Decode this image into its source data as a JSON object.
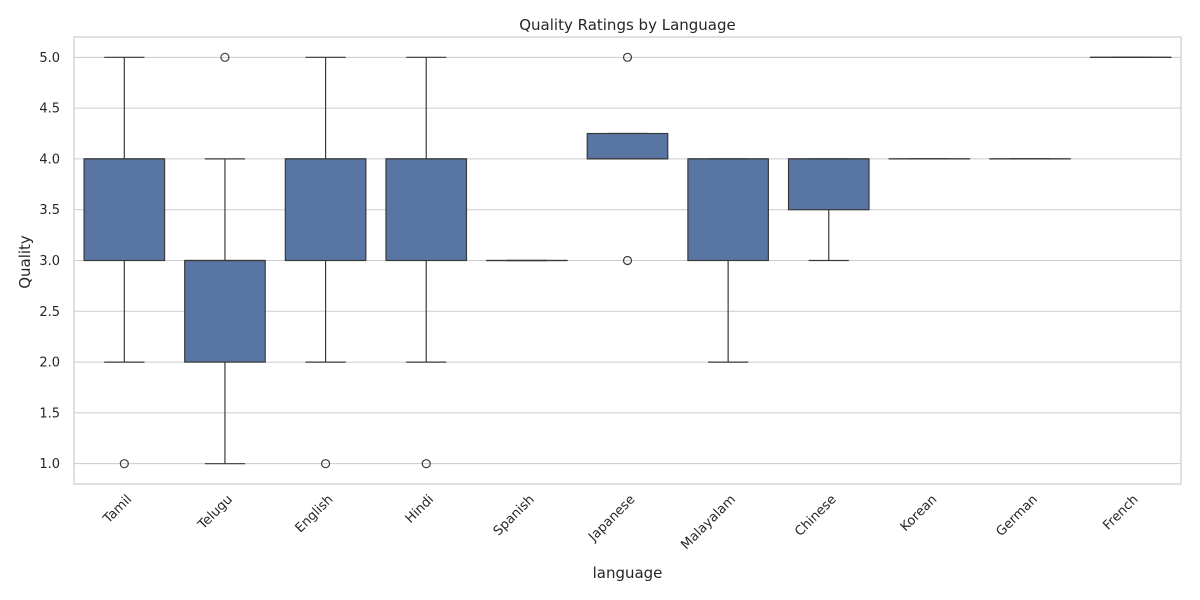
{
  "chart_data": {
    "type": "box",
    "title": "Quality Ratings by Language",
    "xlabel": "language",
    "ylabel": "Quality",
    "ylim": [
      0.8,
      5.2
    ],
    "yticks": [
      1.0,
      1.5,
      2.0,
      2.5,
      3.0,
      3.5,
      4.0,
      4.5,
      5.0
    ],
    "ytick_labels": [
      "1.0",
      "1.5",
      "2.0",
      "2.5",
      "3.0",
      "3.5",
      "4.0",
      "4.5",
      "5.0"
    ],
    "grid": true,
    "box_color": "#5975a4",
    "line_color": "#3a3a3a",
    "categories": [
      "Tamil",
      "Telugu",
      "English",
      "Hindi",
      "Spanish",
      "Japanese",
      "Malayalam",
      "Chinese",
      "Korean",
      "German",
      "French"
    ],
    "boxes": [
      {
        "category": "Tamil",
        "whisker_low": 2.0,
        "q1": 3.0,
        "median": 4.0,
        "q3": 4.0,
        "whisker_high": 5.0,
        "outliers": [
          1.0
        ]
      },
      {
        "category": "Telugu",
        "whisker_low": 1.0,
        "q1": 2.0,
        "median": 3.0,
        "q3": 3.0,
        "whisker_high": 4.0,
        "outliers": [
          5.0
        ]
      },
      {
        "category": "English",
        "whisker_low": 2.0,
        "q1": 3.0,
        "median": 4.0,
        "q3": 4.0,
        "whisker_high": 5.0,
        "outliers": [
          1.0
        ]
      },
      {
        "category": "Hindi",
        "whisker_low": 2.0,
        "q1": 3.0,
        "median": 4.0,
        "q3": 4.0,
        "whisker_high": 5.0,
        "outliers": [
          1.0
        ]
      },
      {
        "category": "Spanish",
        "whisker_low": 3.0,
        "q1": 3.0,
        "median": 3.0,
        "q3": 3.0,
        "whisker_high": 3.0,
        "outliers": []
      },
      {
        "category": "Japanese",
        "whisker_low": 4.0,
        "q1": 4.0,
        "median": 4.0,
        "q3": 4.25,
        "whisker_high": 4.25,
        "outliers": [
          3.0,
          5.0
        ]
      },
      {
        "category": "Malayalam",
        "whisker_low": 2.0,
        "q1": 3.0,
        "median": 4.0,
        "q3": 4.0,
        "whisker_high": 4.0,
        "outliers": []
      },
      {
        "category": "Chinese",
        "whisker_low": 3.0,
        "q1": 3.5,
        "median": 4.0,
        "q3": 4.0,
        "whisker_high": 4.0,
        "outliers": []
      },
      {
        "category": "Korean",
        "whisker_low": 4.0,
        "q1": 4.0,
        "median": 4.0,
        "q3": 4.0,
        "whisker_high": 4.0,
        "outliers": []
      },
      {
        "category": "German",
        "whisker_low": 4.0,
        "q1": 4.0,
        "median": 4.0,
        "q3": 4.0,
        "whisker_high": 4.0,
        "outliers": []
      },
      {
        "category": "French",
        "whisker_low": 5.0,
        "q1": 5.0,
        "median": 5.0,
        "q3": 5.0,
        "whisker_high": 5.0,
        "outliers": []
      }
    ]
  }
}
